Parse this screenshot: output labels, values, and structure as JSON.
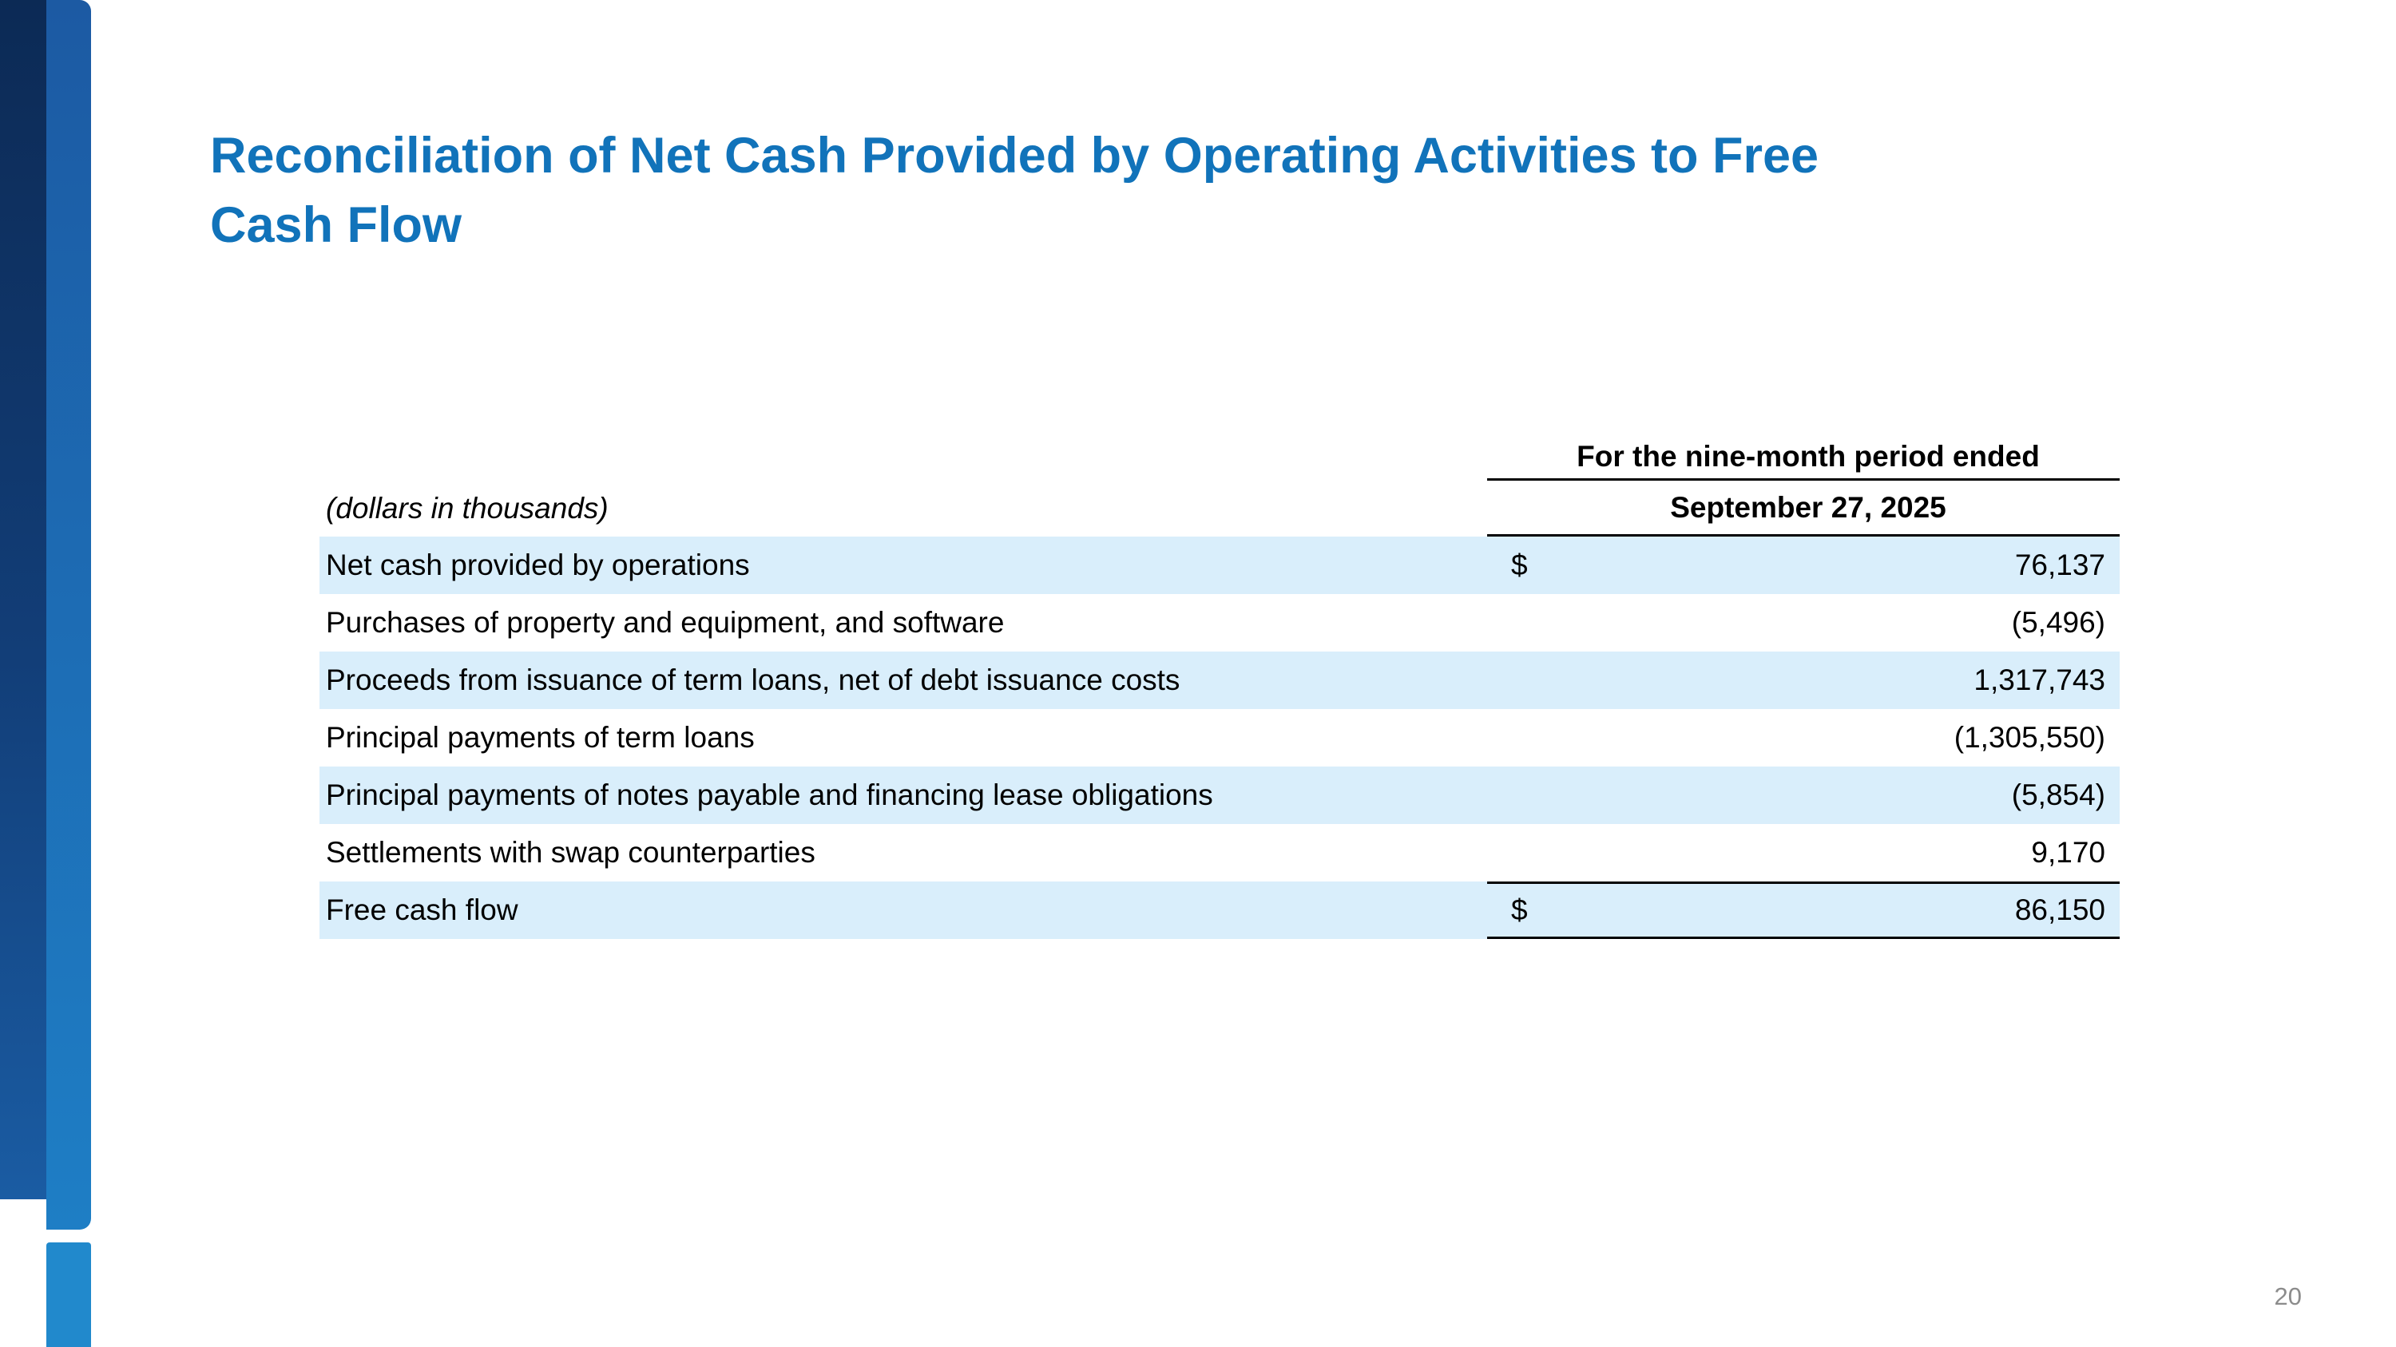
{
  "slide": {
    "title": "Reconciliation of Net Cash Provided by Operating Activities to Free Cash Flow",
    "title_lines": [
      "Reconciliation of Net Cash Provided by Operating Activities to Free",
      "Cash Flow"
    ],
    "page_number": "20"
  },
  "table": {
    "period_header": "For the nine-month period ended",
    "units_note": "(dollars in thousands)",
    "column_header": "September 27, 2025",
    "rows": [
      {
        "label": "Net cash provided by operations",
        "currency": "$",
        "value": "76,137"
      },
      {
        "label": "Purchases of property and equipment, and software",
        "currency": "",
        "value": "(5,496)"
      },
      {
        "label": "Proceeds from issuance of term loans, net of debt issuance costs",
        "currency": "",
        "value": "1,317,743"
      },
      {
        "label": "Principal payments of term loans",
        "currency": "",
        "value": "(1,305,550)"
      },
      {
        "label": "Principal payments of notes payable and financing lease obligations",
        "currency": "",
        "value": "(5,854)"
      },
      {
        "label": "Settlements with swap counterparties",
        "currency": "",
        "value": "9,170"
      },
      {
        "label": "Free cash flow",
        "currency": "$",
        "value": "86,150"
      }
    ]
  },
  "colors": {
    "title_blue": "#1173BA",
    "row_shade": "#D9EEFB",
    "rail_navy": "#123E78",
    "rail_blue": "#1E7EC5",
    "rail_bottom_blue": "#2189CC",
    "page_number_gray": "#8C8C8C"
  }
}
